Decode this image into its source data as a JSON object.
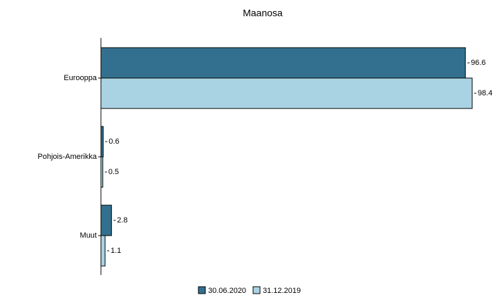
{
  "chart_data": {
    "type": "hbar",
    "title": "Maanosa",
    "categories": [
      "Eurooppa",
      "Pohjois-Amerikka",
      "Muut"
    ],
    "series": [
      {
        "name": "30.06.2020",
        "color": "#33708f",
        "values": [
          96.6,
          0.6,
          2.8
        ]
      },
      {
        "name": "31.12.2019",
        "color": "#a9d3e3",
        "values": [
          98.4,
          0.5,
          1.1
        ]
      }
    ]
  }
}
